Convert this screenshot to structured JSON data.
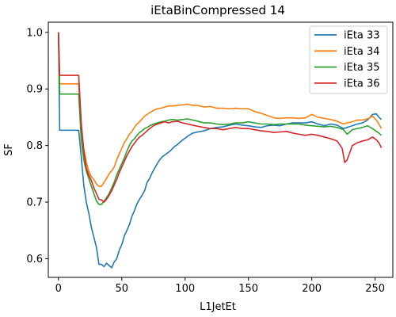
{
  "chart_data": {
    "type": "line",
    "title": "iEtaBinCompressed 14",
    "xlabel": "L1JetEt",
    "ylabel": "SF",
    "xlim": [
      -8,
      264
    ],
    "ylim": [
      0.567,
      1.018
    ],
    "xticks": [
      0,
      50,
      100,
      150,
      200,
      250
    ],
    "yticks": [
      0.6,
      0.7,
      0.8,
      0.9,
      1.0
    ],
    "ytick_labels": [
      "0.6",
      "0.7",
      "0.8",
      "0.9",
      "1.0"
    ],
    "grid": false,
    "legend_position": "top-right",
    "series": [
      {
        "name": "iEta 33",
        "color": "#1f77b4",
        "points": [
          [
            0,
            1.0
          ],
          [
            1,
            0.827
          ],
          [
            16,
            0.827
          ],
          [
            18,
            0.78
          ],
          [
            20,
            0.73
          ],
          [
            22,
            0.7
          ],
          [
            24,
            0.68
          ],
          [
            26,
            0.655
          ],
          [
            28,
            0.638
          ],
          [
            30,
            0.62
          ],
          [
            32,
            0.59
          ],
          [
            34,
            0.59
          ],
          [
            36,
            0.586
          ],
          [
            38,
            0.592
          ],
          [
            40,
            0.588
          ],
          [
            42,
            0.584
          ],
          [
            44,
            0.594
          ],
          [
            46,
            0.6
          ],
          [
            48,
            0.615
          ],
          [
            50,
            0.625
          ],
          [
            52,
            0.64
          ],
          [
            54,
            0.65
          ],
          [
            56,
            0.66
          ],
          [
            58,
            0.675
          ],
          [
            60,
            0.685
          ],
          [
            62,
            0.697
          ],
          [
            64,
            0.705
          ],
          [
            66,
            0.712
          ],
          [
            68,
            0.72
          ],
          [
            70,
            0.735
          ],
          [
            72,
            0.742
          ],
          [
            74,
            0.752
          ],
          [
            76,
            0.76
          ],
          [
            78,
            0.768
          ],
          [
            80,
            0.775
          ],
          [
            82,
            0.78
          ],
          [
            85,
            0.785
          ],
          [
            88,
            0.79
          ],
          [
            91,
            0.797
          ],
          [
            94,
            0.802
          ],
          [
            97,
            0.808
          ],
          [
            100,
            0.813
          ],
          [
            103,
            0.818
          ],
          [
            106,
            0.822
          ],
          [
            110,
            0.824
          ],
          [
            115,
            0.826
          ],
          [
            120,
            0.83
          ],
          [
            125,
            0.832
          ],
          [
            130,
            0.833
          ],
          [
            135,
            0.836
          ],
          [
            140,
            0.838
          ],
          [
            145,
            0.836
          ],
          [
            150,
            0.835
          ],
          [
            155,
            0.833
          ],
          [
            160,
            0.832
          ],
          [
            165,
            0.835
          ],
          [
            170,
            0.836
          ],
          [
            175,
            0.835
          ],
          [
            180,
            0.838
          ],
          [
            185,
            0.84
          ],
          [
            190,
            0.84
          ],
          [
            195,
            0.84
          ],
          [
            200,
            0.842
          ],
          [
            205,
            0.838
          ],
          [
            210,
            0.835
          ],
          [
            215,
            0.838
          ],
          [
            220,
            0.836
          ],
          [
            225,
            0.83
          ],
          [
            228,
            0.832
          ],
          [
            232,
            0.835
          ],
          [
            236,
            0.838
          ],
          [
            240,
            0.84
          ],
          [
            244,
            0.845
          ],
          [
            248,
            0.855
          ],
          [
            251,
            0.856
          ],
          [
            253,
            0.85
          ],
          [
            255,
            0.846
          ]
        ]
      },
      {
        "name": "iEta 34",
        "color": "#ff7f0e",
        "points": [
          [
            0,
            1.0
          ],
          [
            1,
            0.909
          ],
          [
            16,
            0.909
          ],
          [
            18,
            0.83
          ],
          [
            20,
            0.795
          ],
          [
            22,
            0.77
          ],
          [
            24,
            0.755
          ],
          [
            26,
            0.745
          ],
          [
            28,
            0.74
          ],
          [
            30,
            0.732
          ],
          [
            32,
            0.728
          ],
          [
            34,
            0.728
          ],
          [
            36,
            0.735
          ],
          [
            38,
            0.742
          ],
          [
            40,
            0.75
          ],
          [
            42,
            0.755
          ],
          [
            44,
            0.762
          ],
          [
            46,
            0.775
          ],
          [
            48,
            0.785
          ],
          [
            50,
            0.795
          ],
          [
            52,
            0.805
          ],
          [
            54,
            0.812
          ],
          [
            56,
            0.82
          ],
          [
            58,
            0.825
          ],
          [
            60,
            0.832
          ],
          [
            62,
            0.838
          ],
          [
            64,
            0.842
          ],
          [
            66,
            0.847
          ],
          [
            68,
            0.852
          ],
          [
            70,
            0.855
          ],
          [
            72,
            0.858
          ],
          [
            75,
            0.862
          ],
          [
            78,
            0.865
          ],
          [
            81,
            0.866
          ],
          [
            84,
            0.868
          ],
          [
            87,
            0.87
          ],
          [
            90,
            0.87
          ],
          [
            94,
            0.871
          ],
          [
            98,
            0.872
          ],
          [
            102,
            0.873
          ],
          [
            106,
            0.871
          ],
          [
            110,
            0.871
          ],
          [
            115,
            0.868
          ],
          [
            120,
            0.869
          ],
          [
            125,
            0.866
          ],
          [
            130,
            0.866
          ],
          [
            135,
            0.865
          ],
          [
            140,
            0.866
          ],
          [
            145,
            0.865
          ],
          [
            150,
            0.865
          ],
          [
            155,
            0.86
          ],
          [
            160,
            0.857
          ],
          [
            165,
            0.853
          ],
          [
            170,
            0.849
          ],
          [
            175,
            0.848
          ],
          [
            180,
            0.849
          ],
          [
            185,
            0.849
          ],
          [
            190,
            0.848
          ],
          [
            195,
            0.849
          ],
          [
            200,
            0.855
          ],
          [
            205,
            0.85
          ],
          [
            210,
            0.848
          ],
          [
            215,
            0.846
          ],
          [
            220,
            0.843
          ],
          [
            225,
            0.838
          ],
          [
            228,
            0.84
          ],
          [
            232,
            0.842
          ],
          [
            236,
            0.845
          ],
          [
            240,
            0.845
          ],
          [
            244,
            0.847
          ],
          [
            248,
            0.852
          ],
          [
            251,
            0.845
          ],
          [
            253,
            0.838
          ],
          [
            255,
            0.83
          ]
        ]
      },
      {
        "name": "iEta 35",
        "color": "#2ca02c",
        "points": [
          [
            0,
            1.0
          ],
          [
            1,
            0.891
          ],
          [
            16,
            0.891
          ],
          [
            18,
            0.81
          ],
          [
            20,
            0.775
          ],
          [
            22,
            0.755
          ],
          [
            24,
            0.742
          ],
          [
            26,
            0.728
          ],
          [
            28,
            0.715
          ],
          [
            30,
            0.702
          ],
          [
            32,
            0.696
          ],
          [
            34,
            0.696
          ],
          [
            36,
            0.702
          ],
          [
            38,
            0.708
          ],
          [
            40,
            0.715
          ],
          [
            42,
            0.725
          ],
          [
            44,
            0.735
          ],
          [
            46,
            0.748
          ],
          [
            48,
            0.758
          ],
          [
            50,
            0.768
          ],
          [
            52,
            0.778
          ],
          [
            54,
            0.79
          ],
          [
            56,
            0.8
          ],
          [
            58,
            0.808
          ],
          [
            60,
            0.812
          ],
          [
            62,
            0.818
          ],
          [
            64,
            0.823
          ],
          [
            66,
            0.826
          ],
          [
            68,
            0.83
          ],
          [
            70,
            0.832
          ],
          [
            72,
            0.835
          ],
          [
            75,
            0.838
          ],
          [
            78,
            0.84
          ],
          [
            81,
            0.842
          ],
          [
            84,
            0.843
          ],
          [
            87,
            0.845
          ],
          [
            90,
            0.846
          ],
          [
            94,
            0.845
          ],
          [
            98,
            0.846
          ],
          [
            102,
            0.847
          ],
          [
            106,
            0.845
          ],
          [
            110,
            0.843
          ],
          [
            115,
            0.84
          ],
          [
            120,
            0.84
          ],
          [
            125,
            0.838
          ],
          [
            130,
            0.837
          ],
          [
            135,
            0.838
          ],
          [
            140,
            0.84
          ],
          [
            145,
            0.84
          ],
          [
            150,
            0.842
          ],
          [
            155,
            0.84
          ],
          [
            160,
            0.838
          ],
          [
            165,
            0.838
          ],
          [
            170,
            0.837
          ],
          [
            175,
            0.838
          ],
          [
            180,
            0.838
          ],
          [
            185,
            0.838
          ],
          [
            190,
            0.838
          ],
          [
            195,
            0.836
          ],
          [
            200,
            0.835
          ],
          [
            205,
            0.834
          ],
          [
            210,
            0.833
          ],
          [
            215,
            0.834
          ],
          [
            220,
            0.832
          ],
          [
            225,
            0.828
          ],
          [
            228,
            0.82
          ],
          [
            232,
            0.828
          ],
          [
            236,
            0.83
          ],
          [
            240,
            0.832
          ],
          [
            244,
            0.835
          ],
          [
            248,
            0.83
          ],
          [
            251,
            0.825
          ],
          [
            253,
            0.822
          ],
          [
            255,
            0.818
          ]
        ]
      },
      {
        "name": "iEta 36",
        "color": "#d62728",
        "points": [
          [
            0,
            1.0
          ],
          [
            1,
            0.924
          ],
          [
            16,
            0.924
          ],
          [
            18,
            0.84
          ],
          [
            20,
            0.79
          ],
          [
            22,
            0.76
          ],
          [
            24,
            0.748
          ],
          [
            26,
            0.738
          ],
          [
            28,
            0.725
          ],
          [
            30,
            0.715
          ],
          [
            32,
            0.705
          ],
          [
            34,
            0.704
          ],
          [
            36,
            0.7
          ],
          [
            38,
            0.705
          ],
          [
            40,
            0.712
          ],
          [
            42,
            0.72
          ],
          [
            44,
            0.73
          ],
          [
            46,
            0.74
          ],
          [
            48,
            0.752
          ],
          [
            50,
            0.762
          ],
          [
            52,
            0.772
          ],
          [
            54,
            0.782
          ],
          [
            56,
            0.79
          ],
          [
            58,
            0.798
          ],
          [
            60,
            0.804
          ],
          [
            62,
            0.81
          ],
          [
            64,
            0.815
          ],
          [
            66,
            0.818
          ],
          [
            68,
            0.822
          ],
          [
            70,
            0.826
          ],
          [
            72,
            0.83
          ],
          [
            75,
            0.835
          ],
          [
            78,
            0.838
          ],
          [
            81,
            0.84
          ],
          [
            84,
            0.842
          ],
          [
            87,
            0.84
          ],
          [
            90,
            0.842
          ],
          [
            94,
            0.843
          ],
          [
            98,
            0.84
          ],
          [
            102,
            0.838
          ],
          [
            106,
            0.836
          ],
          [
            110,
            0.834
          ],
          [
            115,
            0.832
          ],
          [
            120,
            0.83
          ],
          [
            125,
            0.83
          ],
          [
            130,
            0.828
          ],
          [
            135,
            0.83
          ],
          [
            140,
            0.832
          ],
          [
            145,
            0.83
          ],
          [
            150,
            0.83
          ],
          [
            155,
            0.828
          ],
          [
            160,
            0.826
          ],
          [
            165,
            0.825
          ],
          [
            170,
            0.823
          ],
          [
            175,
            0.824
          ],
          [
            180,
            0.825
          ],
          [
            185,
            0.822
          ],
          [
            190,
            0.82
          ],
          [
            195,
            0.818
          ],
          [
            200,
            0.82
          ],
          [
            205,
            0.818
          ],
          [
            210,
            0.815
          ],
          [
            215,
            0.812
          ],
          [
            220,
            0.808
          ],
          [
            224,
            0.795
          ],
          [
            226,
            0.77
          ],
          [
            228,
            0.775
          ],
          [
            232,
            0.8
          ],
          [
            236,
            0.805
          ],
          [
            240,
            0.808
          ],
          [
            244,
            0.81
          ],
          [
            248,
            0.815
          ],
          [
            251,
            0.81
          ],
          [
            253,
            0.805
          ],
          [
            255,
            0.796
          ]
        ]
      }
    ]
  }
}
